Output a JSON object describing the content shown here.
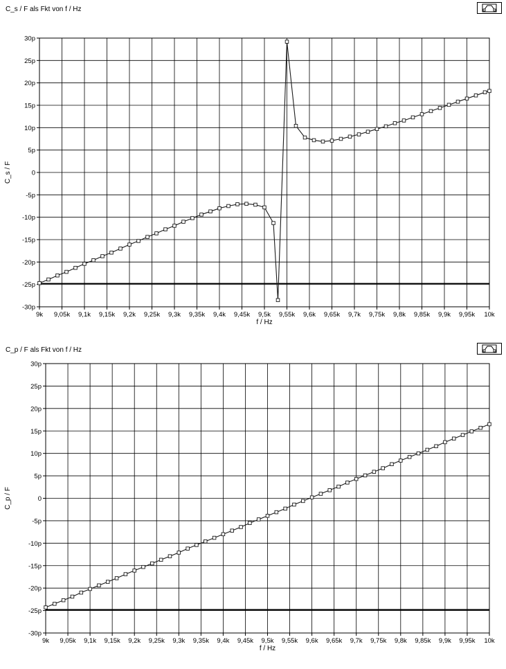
{
  "chart_data": [
    {
      "type": "line",
      "title": "C_s / F  als Fkt von  f / Hz",
      "xlabel": "f / Hz",
      "ylabel": "C_s / F",
      "xlim": [
        9000,
        10000
      ],
      "ylim": [
        -30,
        30
      ],
      "y_unit_suffix": "p",
      "grid": true,
      "legend_icon": "plot-legend-icon",
      "x_ticks": [
        "9k",
        "9,05k",
        "9,1k",
        "9,15k",
        "9,2k",
        "9,25k",
        "9,3k",
        "9,35k",
        "9,4k",
        "9,45k",
        "9,5k",
        "9,55k",
        "9,6k",
        "9,65k",
        "9,7k",
        "9,75k",
        "9,8k",
        "9,85k",
        "9,9k",
        "9,95k",
        "10k"
      ],
      "y_ticks": [
        "30p",
        "25p",
        "20p",
        "15p",
        "10p",
        "5p",
        "0",
        "-5p",
        "-10p",
        "-15p",
        "-20p",
        "-25p",
        "-30p"
      ],
      "reference_line_y": -24.8,
      "series": [
        {
          "marker": "square",
          "points": [
            [
              9000,
              -24.7
            ],
            [
              9020,
              -23.9
            ],
            [
              9040,
              -23.0
            ],
            [
              9060,
              -22.2
            ],
            [
              9080,
              -21.3
            ],
            [
              9100,
              -20.4
            ],
            [
              9120,
              -19.6
            ],
            [
              9140,
              -18.7
            ],
            [
              9160,
              -17.9
            ],
            [
              9180,
              -17.0
            ],
            [
              9200,
              -16.1
            ],
            [
              9220,
              -15.3
            ],
            [
              9240,
              -14.4
            ],
            [
              9260,
              -13.6
            ],
            [
              9280,
              -12.7
            ],
            [
              9300,
              -11.9
            ],
            [
              9320,
              -11.0
            ],
            [
              9340,
              -10.2
            ],
            [
              9360,
              -9.4
            ],
            [
              9380,
              -8.7
            ],
            [
              9400,
              -8.0
            ],
            [
              9420,
              -7.5
            ],
            [
              9440,
              -7.1
            ],
            [
              9460,
              -7.0
            ],
            [
              9480,
              -7.2
            ],
            [
              9500,
              -7.8
            ],
            [
              9520,
              -11.3
            ],
            [
              9530,
              -28.5
            ],
            [
              9550,
              29.2
            ],
            [
              9570,
              10.4
            ],
            [
              9590,
              7.8
            ],
            [
              9610,
              7.2
            ],
            [
              9630,
              6.9
            ],
            [
              9650,
              7.1
            ],
            [
              9670,
              7.5
            ],
            [
              9690,
              8.0
            ],
            [
              9710,
              8.5
            ],
            [
              9730,
              9.1
            ],
            [
              9750,
              9.7
            ],
            [
              9770,
              10.3
            ],
            [
              9790,
              11.0
            ],
            [
              9810,
              11.6
            ],
            [
              9830,
              12.3
            ],
            [
              9850,
              13.0
            ],
            [
              9870,
              13.7
            ],
            [
              9890,
              14.4
            ],
            [
              9910,
              15.1
            ],
            [
              9930,
              15.8
            ],
            [
              9950,
              16.5
            ],
            [
              9970,
              17.2
            ],
            [
              9990,
              17.9
            ],
            [
              10000,
              18.2
            ]
          ]
        }
      ]
    },
    {
      "type": "line",
      "title": "C_p / F  als Fkt von  f / Hz",
      "xlabel": "f / Hz",
      "ylabel": "C_p / F",
      "xlim": [
        9000,
        10000
      ],
      "ylim": [
        -30,
        30
      ],
      "y_unit_suffix": "p",
      "grid": true,
      "legend_icon": "plot-legend-icon",
      "x_ticks": [
        "9k",
        "9,05k",
        "9,1k",
        "9,15k",
        "9,2k",
        "9,25k",
        "9,3k",
        "9,35k",
        "9,4k",
        "9,45k",
        "9,5k",
        "9,55k",
        "9,6k",
        "9,65k",
        "9,7k",
        "9,75k",
        "9,8k",
        "9,85k",
        "9,9k",
        "9,95k",
        "10k"
      ],
      "y_ticks": [
        "30p",
        "25p",
        "20p",
        "15p",
        "10p",
        "5p",
        "0",
        "-5p",
        "-10p",
        "-15p",
        "-20p",
        "-25p",
        "-30p"
      ],
      "reference_line_y": -24.8,
      "series": [
        {
          "marker": "square",
          "points": [
            [
              9000,
              -24.3
            ],
            [
              9020,
              -23.5
            ],
            [
              9040,
              -22.7
            ],
            [
              9060,
              -21.9
            ],
            [
              9080,
              -21.0
            ],
            [
              9100,
              -20.2
            ],
            [
              9120,
              -19.4
            ],
            [
              9140,
              -18.6
            ],
            [
              9160,
              -17.8
            ],
            [
              9180,
              -16.9
            ],
            [
              9200,
              -16.1
            ],
            [
              9220,
              -15.3
            ],
            [
              9240,
              -14.5
            ],
            [
              9260,
              -13.7
            ],
            [
              9280,
              -12.9
            ],
            [
              9300,
              -12.1
            ],
            [
              9320,
              -11.2
            ],
            [
              9340,
              -10.4
            ],
            [
              9360,
              -9.6
            ],
            [
              9380,
              -8.8
            ],
            [
              9400,
              -8.0
            ],
            [
              9420,
              -7.2
            ],
            [
              9440,
              -6.4
            ],
            [
              9460,
              -5.5
            ],
            [
              9480,
              -4.7
            ],
            [
              9500,
              -3.9
            ],
            [
              9520,
              -3.1
            ],
            [
              9540,
              -2.3
            ],
            [
              9560,
              -1.4
            ],
            [
              9580,
              -0.6
            ],
            [
              9600,
              0.2
            ],
            [
              9620,
              1.0
            ],
            [
              9640,
              1.8
            ],
            [
              9660,
              2.6
            ],
            [
              9680,
              3.5
            ],
            [
              9700,
              4.3
            ],
            [
              9720,
              5.1
            ],
            [
              9740,
              5.9
            ],
            [
              9760,
              6.7
            ],
            [
              9780,
              7.6
            ],
            [
              9800,
              8.4
            ],
            [
              9820,
              9.2
            ],
            [
              9840,
              10.0
            ],
            [
              9860,
              10.8
            ],
            [
              9880,
              11.6
            ],
            [
              9900,
              12.5
            ],
            [
              9920,
              13.3
            ],
            [
              9940,
              14.1
            ],
            [
              9960,
              14.9
            ],
            [
              9980,
              15.7
            ],
            [
              10000,
              16.5
            ]
          ]
        }
      ]
    }
  ]
}
